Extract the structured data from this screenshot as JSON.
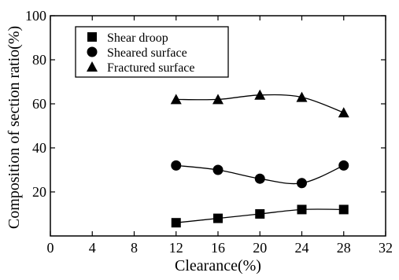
{
  "chart_data": {
    "type": "line",
    "title": "",
    "xlabel": "Clearance(%)",
    "ylabel": "Composition of section ratio(%)",
    "xlim": [
      0,
      32
    ],
    "ylim": [
      0,
      100
    ],
    "xticks": [
      "0",
      "4",
      "8",
      "12",
      "16",
      "20",
      "24",
      "28",
      "32"
    ],
    "yticks": [
      "20",
      "40",
      "60",
      "80",
      "100"
    ],
    "grid": false,
    "legend_position": "top-left",
    "x": [
      12,
      16,
      20,
      24,
      28
    ],
    "series": [
      {
        "name": "Shear droop",
        "marker": "square",
        "values": [
          6,
          8,
          10,
          12,
          12
        ]
      },
      {
        "name": "Sheared surface",
        "marker": "circle",
        "values": [
          32,
          30,
          26,
          24,
          32
        ]
      },
      {
        "name": "Fractured surface",
        "marker": "triangle",
        "values": [
          62,
          62,
          64,
          63,
          56
        ]
      }
    ]
  }
}
